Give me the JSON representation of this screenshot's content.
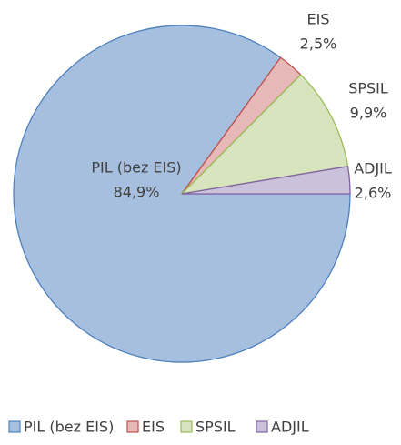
{
  "chart_data": {
    "type": "pie",
    "categories": [
      "PIL (bez EIS)",
      "EIS",
      "SPSIL",
      "ADJIL"
    ],
    "values": [
      84.9,
      2.5,
      9.9,
      2.6
    ],
    "value_labels": [
      "84,9%",
      "2,5%",
      "9,9%",
      "2,6%"
    ],
    "colors": [
      "#a7bfde",
      "#e6b9b8",
      "#d7e4bd",
      "#ccc1da"
    ],
    "edge_colors": [
      "#4f81bd",
      "#c0504d",
      "#9bbb59",
      "#8064a2"
    ],
    "legend": "bottom"
  }
}
